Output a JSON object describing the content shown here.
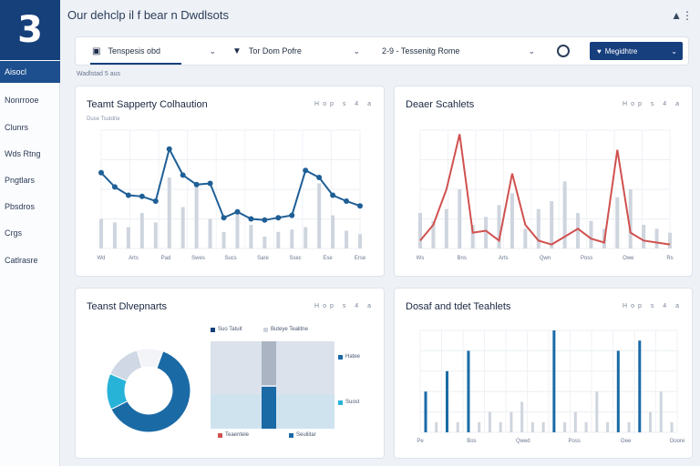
{
  "app": {
    "logo": "3",
    "title": "Our dehclp il f bear n Dwdlsots",
    "top_icon": "share-icon"
  },
  "sidebar": {
    "items": [
      {
        "label": "Aisocl",
        "active": true
      },
      {
        "label": "Nonrrooe"
      },
      {
        "label": "Clunrs"
      },
      {
        "label": "Wds Rtng"
      },
      {
        "label": "Pngtlars"
      },
      {
        "label": "Pbsdros"
      },
      {
        "label": "Crgs"
      },
      {
        "label": "Catlrasre"
      }
    ]
  },
  "filters": {
    "f1": "Tenspesis obd",
    "f2": "Tor Dom Pofre",
    "f3": "2-9 - Tessenitg Rome",
    "apply": "Megidhtre",
    "sublabel": "Wadlstad  5  aus"
  },
  "colors": {
    "brand": "#15407a",
    "line_blue": "#1f5f96",
    "line_red": "#d0514f",
    "bar_grey": "#cfd5de",
    "donut_dark": "#1a6aa6",
    "donut_light": "#27b2d8"
  },
  "cards": {
    "c1": {
      "title": "Teamt Sapperty Colhaution",
      "sub": "Duse Tsutdrie",
      "tools": "Hop  s  4  a"
    },
    "c2": {
      "title": "Deaer Scahlets",
      "tools": "Hop  s  4  a"
    },
    "c3": {
      "title": "Teanst Dlvepnarts",
      "tools": "Hop  s  4  a",
      "legend_a": "Suo Tatuit",
      "legend_b": "Buteye Tealitne",
      "legend_c": "Hatee",
      "legend_d": "Suost",
      "legend_e": "Teaentele",
      "legend_f": "Seuliitar"
    },
    "c4": {
      "title": "Dosaf and tdet Teahlets",
      "tools": "Hop  s  4  a"
    }
  },
  "chart_data": [
    {
      "type": "line",
      "title": "Teamt Sapperty Colhaution",
      "x": [
        1,
        2,
        3,
        4,
        5,
        6,
        7,
        8,
        9,
        10,
        11,
        12,
        13,
        14,
        15,
        16,
        17,
        18,
        19,
        20
      ],
      "series": [
        {
          "values": [
            64,
            52,
            45,
            44,
            40,
            84,
            62,
            54,
            55,
            26,
            31,
            25,
            24,
            26,
            28,
            66,
            60,
            45,
            40,
            36
          ]
        }
      ],
      "bars": [
        25,
        22,
        18,
        30,
        22,
        60,
        35,
        55,
        25,
        14,
        30,
        20,
        10,
        14,
        16,
        18,
        55,
        28,
        15,
        12
      ],
      "ylim": [
        0,
        100
      ],
      "xticks": [
        "Wd",
        "Arts",
        "Pad",
        "Swes",
        "Sucs",
        "Sare",
        "Ssec",
        "Ese",
        "Erse"
      ]
    },
    {
      "type": "line",
      "title": "Deaer Scahlets",
      "series": [
        {
          "values": [
            4,
            12,
            30,
            58,
            8,
            9,
            4,
            38,
            12,
            4,
            2,
            6,
            10,
            5,
            3,
            50,
            8,
            4,
            3,
            2
          ]
        }
      ],
      "bars": [
        18,
        14,
        20,
        30,
        12,
        16,
        22,
        28,
        10,
        20,
        24,
        34,
        18,
        14,
        10,
        26,
        30,
        12,
        10,
        8
      ],
      "ylim": [
        0,
        60
      ],
      "xticks": [
        "Ws",
        "Bns",
        "Arts",
        "Qwn",
        "Poss",
        "Owe",
        "Rs"
      ]
    },
    {
      "type": "pie",
      "title": "Teanst Dlvepnarts",
      "values": [
        62,
        14,
        14,
        10
      ]
    },
    {
      "type": "bar",
      "title": "Dosaf and tdet Teahlets",
      "values": [
        4,
        1,
        6,
        1,
        8,
        1,
        2,
        1,
        2,
        3,
        1,
        1,
        10,
        1,
        2,
        1,
        4,
        1,
        8,
        1,
        9,
        2,
        4,
        1
      ],
      "highlights": [
        0,
        2,
        4,
        12,
        18,
        20
      ],
      "ylim": [
        0,
        10
      ],
      "xticks": [
        "Pe",
        "Bos",
        "Qwed",
        "Poss",
        "Oee",
        "Ooore"
      ]
    }
  ]
}
